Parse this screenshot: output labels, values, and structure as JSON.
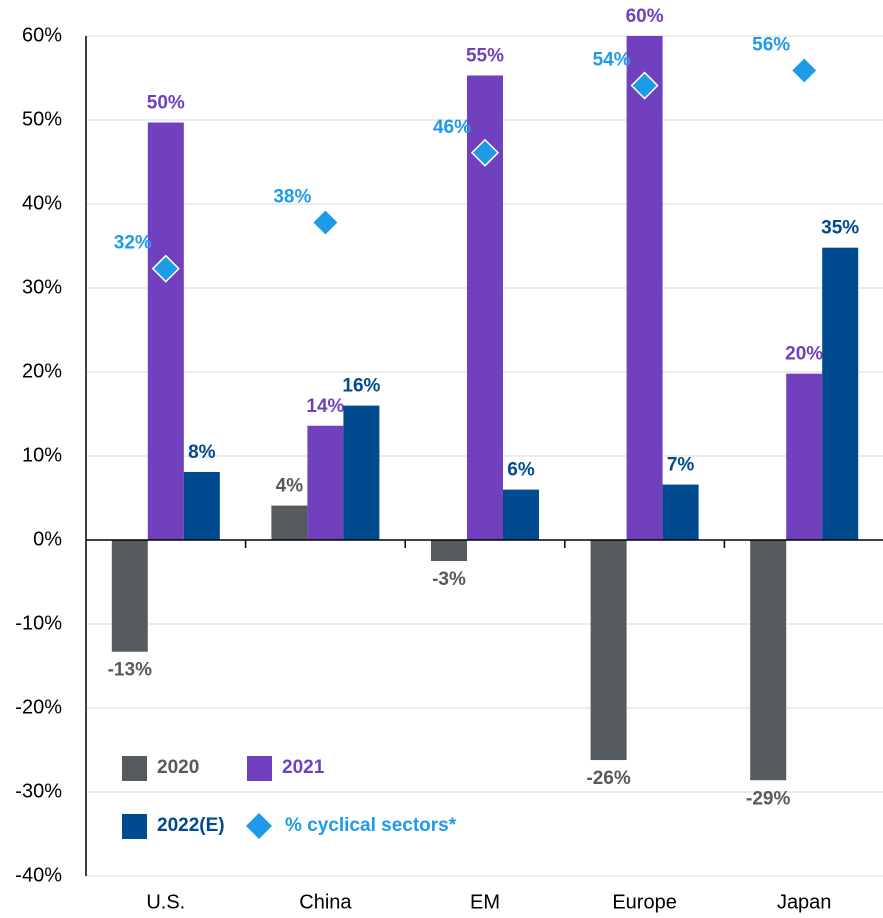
{
  "chart_data": {
    "type": "bar",
    "categories": [
      "U.S.",
      "China",
      "EM",
      "Europe",
      "Japan"
    ],
    "series": [
      {
        "name": "2020",
        "color": "#565b5f",
        "values": [
          -13.3,
          4.1,
          -2.5,
          -26.2,
          -28.6
        ],
        "value_labels": [
          "-13%",
          "4%",
          "-3%",
          "-26%",
          "-29%"
        ],
        "label_color": "#595959"
      },
      {
        "name": "2021",
        "color": "#7040bf",
        "values": [
          49.7,
          13.6,
          55.3,
          60,
          19.8
        ],
        "value_labels": [
          "50%",
          "14%",
          "55%",
          "60%",
          "20%"
        ],
        "label_color": "#7040bf"
      },
      {
        "name": "2022(E)",
        "color": "#004a8f",
        "values": [
          8.1,
          16.0,
          6.0,
          6.6,
          34.8
        ],
        "value_labels": [
          "8%",
          "16%",
          "6%",
          "7%",
          "35%"
        ],
        "label_color": "#004a8f"
      },
      {
        "name": "% cyclical sectors*",
        "type": "scatter",
        "marker": "diamond",
        "color": "#1e9be8",
        "values": [
          32.3,
          37.8,
          46.1,
          54.1,
          55.9
        ],
        "value_labels": [
          "32%",
          "38%",
          "46%",
          "54%",
          "56%"
        ],
        "label_color": "#1e9be8"
      }
    ],
    "ylim": [
      -40,
      60
    ],
    "yticks": [
      {
        "value": -40,
        "label": "-40%"
      },
      {
        "value": -30,
        "label": "-30%"
      },
      {
        "value": -20,
        "label": "-20%"
      },
      {
        "value": -10,
        "label": "-10%"
      },
      {
        "value": 0,
        "label": "0%"
      },
      {
        "value": 10,
        "label": "10%"
      },
      {
        "value": 20,
        "label": "20%"
      },
      {
        "value": 30,
        "label": "30%"
      },
      {
        "value": 40,
        "label": "40%"
      },
      {
        "value": 50,
        "label": "50%"
      },
      {
        "value": 60,
        "label": "60%"
      }
    ],
    "grid": true,
    "legend": "lower left"
  }
}
